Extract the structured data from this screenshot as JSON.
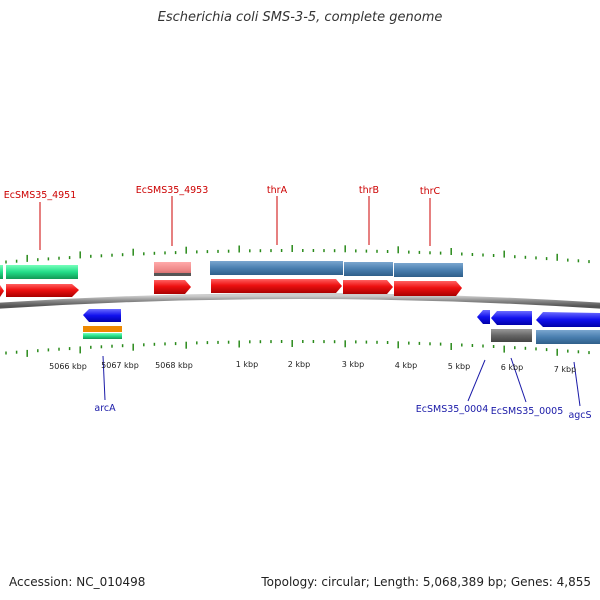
{
  "title": "Escherichia coli SMS-3-5, complete genome",
  "footer": {
    "accession": "Accession: NC_010498",
    "summary": "Topology: circular; Length: 5,068,389 bp; Genes: 4,855"
  },
  "colors": {
    "forward_label": "#cc0000",
    "reverse_label": "#1a1aa8",
    "cds_red": "#ee1111",
    "gene_blue": "#4a7fb0",
    "reverse_blue": "#1111ee",
    "green": "#22dd88",
    "pink": "#ee8888",
    "orange": "#ee8800",
    "gray": "#666666",
    "tick": "#2a8a1a"
  },
  "forward_labels": [
    {
      "id": "ecsms35-4951",
      "text": "EcSMS35_4951"
    },
    {
      "id": "ecsms35-4953",
      "text": "EcSMS35_4953"
    },
    {
      "id": "thra",
      "text": "thrA"
    },
    {
      "id": "thrb",
      "text": "thrB"
    },
    {
      "id": "thrc",
      "text": "thrC"
    }
  ],
  "reverse_labels": [
    {
      "id": "arca",
      "text": "arcA"
    },
    {
      "id": "ecsms35-0004",
      "text": "EcSMS35_0004"
    },
    {
      "id": "ecsms35-0005",
      "text": "EcSMS35_0005"
    },
    {
      "id": "agcs",
      "text": "agcS"
    }
  ],
  "tick_labels": [
    "5066 kbp",
    "5067 kbp",
    "5068 kbp",
    "1 kbp",
    "2 kbp",
    "3 kbp",
    "4 kbp",
    "5 kbp",
    "6 kbp",
    "7 kbp"
  ]
}
